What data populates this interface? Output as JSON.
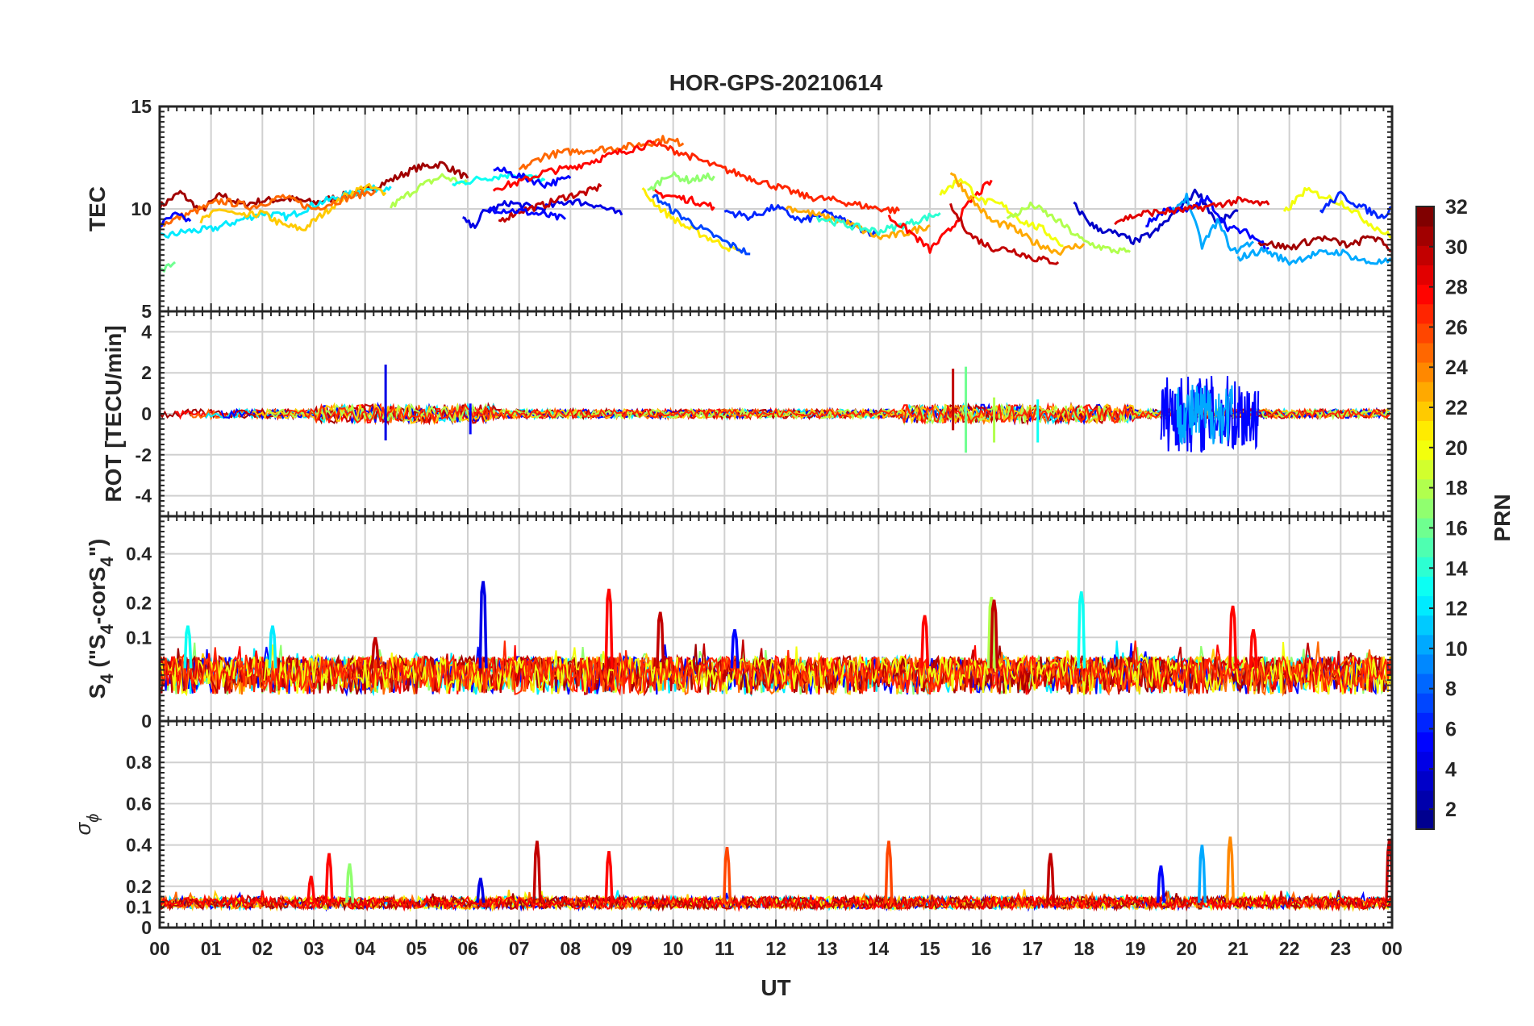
{
  "chart_data": {
    "type": "line",
    "title": "HOR-GPS-20210614",
    "xlabel": "UT",
    "x_tick_labels": [
      "00",
      "01",
      "02",
      "03",
      "04",
      "05",
      "06",
      "07",
      "08",
      "09",
      "10",
      "11",
      "12",
      "13",
      "14",
      "15",
      "16",
      "17",
      "18",
      "19",
      "20",
      "21",
      "22",
      "23",
      "00"
    ],
    "xlim": [
      0,
      24
    ],
    "grid": true,
    "colorbar": {
      "label": "PRN",
      "range": [
        1,
        32
      ],
      "ticks": [
        2,
        4,
        6,
        8,
        10,
        12,
        14,
        16,
        18,
        20,
        22,
        24,
        26,
        28,
        30,
        32
      ],
      "tick_labels": [
        "2",
        "4",
        "6",
        "8",
        "10",
        "12",
        "14",
        "16",
        "18",
        "20",
        "22",
        "24",
        "26",
        "28",
        "30",
        "32"
      ],
      "colormap": "jet",
      "colors": [
        "#00008f",
        "#0000ff",
        "#0080ff",
        "#00ffff",
        "#80ff80",
        "#ffff00",
        "#ff8000",
        "#ff0000",
        "#800000"
      ]
    },
    "panels": [
      {
        "id": "tec",
        "ylabel": "TEC",
        "ylim": [
          5,
          15
        ],
        "yticks": [
          5,
          10,
          15
        ],
        "ytick_labels": [
          "5",
          "10",
          "15"
        ],
        "series": [
          {
            "prn": 31,
            "x": [
              0,
              0.4,
              0.8,
              1.2,
              1.6,
              2,
              2.5,
              3,
              3.5,
              4,
              4.5,
              5,
              5.5,
              6
            ],
            "y": [
              10.1,
              10.8,
              9.9,
              10.7,
              10.2,
              10.4,
              10.5,
              10.3,
              10.6,
              10.9,
              11.4,
              12.0,
              12.2,
              11.5
            ]
          },
          {
            "prn": 12,
            "x": [
              0,
              0.5,
              1,
              1.5,
              2,
              2.5,
              3,
              3.5,
              4,
              4.5
            ],
            "y": [
              8.6,
              8.9,
              9.0,
              9.4,
              9.8,
              9.6,
              10.2,
              10.6,
              10.9,
              11.1
            ]
          },
          {
            "prn": 22,
            "x": [
              0.8,
              1.2,
              1.6,
              2,
              2.4,
              2.8,
              3.2,
              3.6,
              4,
              4.4
            ],
            "y": [
              9.4,
              10.0,
              9.6,
              9.8,
              9.2,
              9.0,
              9.8,
              10.6,
              11.1,
              10.8
            ]
          },
          {
            "prn": 25,
            "x": [
              0,
              0.6,
              1.2,
              1.8,
              2.4,
              3,
              3.6,
              4.2
            ],
            "y": [
              9.2,
              9.8,
              10.4,
              10.1,
              10.6,
              10.0,
              10.5,
              10.9
            ]
          },
          {
            "prn": 16,
            "x": [
              0,
              0.3
            ],
            "y": [
              6.9,
              7.4
            ]
          },
          {
            "prn": 5,
            "x": [
              0,
              0.3,
              0.6
            ],
            "y": [
              9.2,
              9.7,
              9.4
            ]
          },
          {
            "prn": 18,
            "x": [
              4.5,
              5,
              5.5,
              6
            ],
            "y": [
              10.1,
              11.0,
              11.6,
              11.2
            ]
          },
          {
            "prn": 13,
            "x": [
              5.7,
              6.3,
              6.9,
              7.5
            ],
            "y": [
              11.2,
              11.5,
              11.7,
              11.4
            ]
          },
          {
            "prn": 4,
            "x": [
              5.9,
              6.1,
              6.3,
              6.8,
              7.4,
              8,
              8.5,
              9
            ],
            "y": [
              9.5,
              9.1,
              9.8,
              10.3,
              10.0,
              10.4,
              10.2,
              9.7
            ]
          },
          {
            "prn": 30,
            "x": [
              6.6,
              7,
              7.5,
              7.9,
              8.3,
              8.6
            ],
            "y": [
              9.4,
              9.9,
              10.2,
              10.6,
              10.8,
              11.1
            ]
          },
          {
            "prn": 5,
            "x": [
              6.5,
              7,
              7.5,
              8
            ],
            "y": [
              12.0,
              11.6,
              11.2,
              11.5
            ]
          },
          {
            "prn": 5,
            "x": [
              6.4,
              7,
              7.5,
              7.9
            ],
            "y": [
              10.0,
              9.9,
              9.7,
              9.5
            ]
          },
          {
            "prn": 25,
            "x": [
              7,
              7.5,
              8,
              8.5,
              9,
              9.5,
              9.8,
              10.2
            ],
            "y": [
              11.9,
              12.6,
              12.8,
              12.9,
              13.0,
              13.2,
              13.4,
              13.2
            ]
          },
          {
            "prn": 28,
            "x": [
              6.5,
              7,
              7.5,
              8,
              8.5,
              9,
              9.6
            ],
            "y": [
              11.0,
              11.3,
              11.8,
              12.0,
              12.4,
              12.8,
              13.2
            ]
          },
          {
            "prn": 28,
            "x": [
              9.6,
              10,
              10.4,
              10.8
            ],
            "y": [
              10.8,
              10.6,
              10.4,
              10.1
            ]
          },
          {
            "prn": 21,
            "x": [
              9.4,
              9.8,
              10.2,
              10.6,
              11,
              11.3
            ],
            "y": [
              10.9,
              9.9,
              9.2,
              8.7,
              8.2,
              7.9
            ]
          },
          {
            "prn": 7,
            "x": [
              9.6,
              10,
              10.5,
              11,
              11.5
            ],
            "y": [
              10.7,
              9.9,
              9.1,
              8.4,
              7.8
            ]
          },
          {
            "prn": 17,
            "x": [
              9.5,
              9.9,
              10.3,
              10.8
            ],
            "y": [
              10.8,
              11.7,
              11.4,
              11.6
            ]
          },
          {
            "prn": 27,
            "x": [
              9.6,
              10.2,
              10.8,
              11.4,
              12,
              12.6,
              13.2,
              13.8,
              14.4
            ],
            "y": [
              13.2,
              12.7,
              12.1,
              11.6,
              11.1,
              10.6,
              10.4,
              10.1,
              9.9
            ]
          },
          {
            "prn": 6,
            "x": [
              11,
              11.5,
              12,
              12.5,
              13,
              13.5,
              14
            ],
            "y": [
              9.9,
              9.6,
              10.1,
              9.4,
              9.8,
              9.2,
              8.7
            ]
          },
          {
            "prn": 23,
            "x": [
              12.2,
              12.8,
              13.4,
              14,
              14.5,
              15
            ],
            "y": [
              10.1,
              9.7,
              9.3,
              8.6,
              8.8,
              9.2
            ]
          },
          {
            "prn": 14,
            "x": [
              12.8,
              13.4,
              14,
              14.6,
              15.2
            ],
            "y": [
              9.6,
              9.2,
              8.9,
              9.3,
              9.8
            ]
          },
          {
            "prn": 28,
            "x": [
              14.2,
              14.6,
              15,
              15.4,
              15.8,
              16.2
            ],
            "y": [
              9.6,
              8.9,
              8.0,
              9.0,
              10.4,
              11.4
            ]
          },
          {
            "prn": 30,
            "x": [
              15.4,
              15.8,
              16.2,
              16.6,
              17,
              17.5
            ],
            "y": [
              10.1,
              8.7,
              8.1,
              8.0,
              7.6,
              7.4
            ]
          },
          {
            "prn": 20,
            "x": [
              15.2,
              15.6,
              16,
              16.4,
              16.8,
              17.2,
              17.6
            ],
            "y": [
              10.7,
              11.5,
              10.4,
              10.2,
              9.4,
              9.0,
              8.2
            ]
          },
          {
            "prn": 23,
            "x": [
              15.4,
              15.8,
              16.2,
              16.6,
              17,
              17.5,
              18
            ],
            "y": [
              11.8,
              10.5,
              9.4,
              9.1,
              8.4,
              7.9,
              8.3
            ]
          },
          {
            "prn": 18,
            "x": [
              16.5,
              17,
              17.5,
              18,
              18.5,
              18.9
            ],
            "y": [
              9.5,
              10.2,
              9.4,
              8.4,
              8.0,
              7.9
            ]
          },
          {
            "prn": 3,
            "x": [
              17.8,
              18.2,
              18.6,
              19,
              19.4,
              19.8,
              20.2,
              20.6,
              21
            ],
            "y": [
              10.2,
              9.1,
              8.8,
              8.4,
              8.9,
              9.9,
              10.9,
              9.3,
              9.9
            ]
          },
          {
            "prn": 10,
            "x": [
              19.7,
              20,
              20.3,
              20.6,
              20.9,
              21.3
            ],
            "y": [
              9.8,
              10.6,
              8.2,
              9.4,
              7.9,
              8.4
            ]
          },
          {
            "prn": 5,
            "x": [
              19.2,
              19.6,
              20,
              20.4,
              20.8,
              21.2,
              21.6
            ],
            "y": [
              9.2,
              10.0,
              9.9,
              10.5,
              9.1,
              8.8,
              8.1
            ]
          },
          {
            "prn": 29,
            "x": [
              18.6,
              19.2,
              19.8,
              20.4,
              21,
              21.6
            ],
            "y": [
              9.4,
              9.8,
              9.9,
              10.1,
              10.4,
              10.2
            ]
          },
          {
            "prn": 10,
            "x": [
              21,
              21.5,
              22,
              22.5,
              23,
              23.5,
              24
            ],
            "y": [
              7.6,
              8.0,
              7.4,
              7.8,
              7.9,
              7.4,
              7.4
            ]
          },
          {
            "prn": 20,
            "x": [
              21.9,
              22.3,
              22.7,
              23.1,
              23.5,
              24
            ],
            "y": [
              9.8,
              10.9,
              10.6,
              10.2,
              9.4,
              8.6
            ]
          },
          {
            "prn": 6,
            "x": [
              22.6,
              23,
              23.4,
              23.8,
              24
            ],
            "y": [
              9.9,
              10.7,
              10.1,
              9.6,
              10.1
            ]
          },
          {
            "prn": 31,
            "x": [
              21.4,
              22,
              22.6,
              23.2,
              23.6,
              24
            ],
            "y": [
              8.4,
              8.1,
              8.6,
              8.2,
              8.7,
              8.0
            ]
          }
        ]
      },
      {
        "id": "rot",
        "ylabel": "ROT [TECU/min]",
        "ylim": [
          -5,
          5
        ],
        "yticks": [
          -4,
          -2,
          0,
          2,
          4
        ],
        "ytick_labels": [
          "-4",
          "-2",
          "0",
          "2",
          "4"
        ],
        "spikes": [
          {
            "prn": 4,
            "x": 4.4,
            "y": [
              -1.3,
              2.4
            ]
          },
          {
            "prn": 5,
            "x": 6.05,
            "y": [
              -1.0,
              0.5
            ]
          },
          {
            "prn": 30,
            "x": 15.45,
            "y": [
              -0.8,
              2.2
            ]
          },
          {
            "prn": 16,
            "x": 15.7,
            "y": [
              -1.9,
              2.3
            ]
          },
          {
            "prn": 18,
            "x": 16.25,
            "y": [
              -1.4,
              0.8
            ]
          },
          {
            "prn": 13,
            "x": 17.1,
            "y": [
              -1.4,
              0.7
            ]
          }
        ],
        "bursts": [
          {
            "prn": 5,
            "x_range": [
              19.5,
              21.4
            ],
            "amplitude": 1.9
          },
          {
            "prn": 10,
            "x_range": [
              19.8,
              20.9
            ],
            "amplitude": 1.5
          }
        ]
      },
      {
        "id": "s4",
        "ylabel_parts": [
          "S",
          "4",
          " (\"S",
          "4",
          "-corS",
          "4",
          "\")"
        ],
        "ylim": [
          0,
          0.6
        ],
        "yticks": [
          0,
          0.1,
          0.2,
          0.4
        ],
        "ytick_labels": [
          "0",
          "0.1",
          "0.2",
          "0.4"
        ],
        "y_scale": "sqrt",
        "peaks": [
          {
            "prn": 13,
            "x": 0.55,
            "y": 0.13
          },
          {
            "prn": 12,
            "x": 2.2,
            "y": 0.13
          },
          {
            "prn": 30,
            "x": 4.2,
            "y": 0.1
          },
          {
            "prn": 4,
            "x": 6.3,
            "y": 0.28
          },
          {
            "prn": 28,
            "x": 8.75,
            "y": 0.25
          },
          {
            "prn": 30,
            "x": 9.75,
            "y": 0.17
          },
          {
            "prn": 5,
            "x": 11.2,
            "y": 0.12
          },
          {
            "prn": 28,
            "x": 14.9,
            "y": 0.16
          },
          {
            "prn": 18,
            "x": 16.2,
            "y": 0.22
          },
          {
            "prn": 30,
            "x": 16.25,
            "y": 0.21
          },
          {
            "prn": 13,
            "x": 17.95,
            "y": 0.24
          },
          {
            "prn": 28,
            "x": 20.9,
            "y": 0.19
          },
          {
            "prn": 28,
            "x": 21.3,
            "y": 0.12
          }
        ]
      },
      {
        "id": "sigma-phi",
        "ylabel_parts": [
          "σ",
          "ϕ"
        ],
        "ylim": [
          0,
          1
        ],
        "yticks": [
          0,
          0.1,
          0.2,
          0.4,
          0.6,
          0.8
        ],
        "ytick_labels": [
          "0",
          "0.1",
          "0.2",
          "0.4",
          "0.6",
          "0.8"
        ],
        "peaks": [
          {
            "prn": 28,
            "x": 2.95,
            "y": 0.25
          },
          {
            "prn": 28,
            "x": 3.3,
            "y": 0.36
          },
          {
            "prn": 17,
            "x": 3.7,
            "y": 0.31
          },
          {
            "prn": 4,
            "x": 6.25,
            "y": 0.24
          },
          {
            "prn": 30,
            "x": 7.35,
            "y": 0.42
          },
          {
            "prn": 28,
            "x": 8.75,
            "y": 0.37
          },
          {
            "prn": 26,
            "x": 11.05,
            "y": 0.39
          },
          {
            "prn": 26,
            "x": 14.2,
            "y": 0.42
          },
          {
            "prn": 30,
            "x": 17.35,
            "y": 0.36
          },
          {
            "prn": 5,
            "x": 19.5,
            "y": 0.3
          },
          {
            "prn": 10,
            "x": 20.3,
            "y": 0.4
          },
          {
            "prn": 24,
            "x": 20.85,
            "y": 0.44
          },
          {
            "prn": 30,
            "x": 23.95,
            "y": 0.43
          }
        ]
      }
    ]
  }
}
